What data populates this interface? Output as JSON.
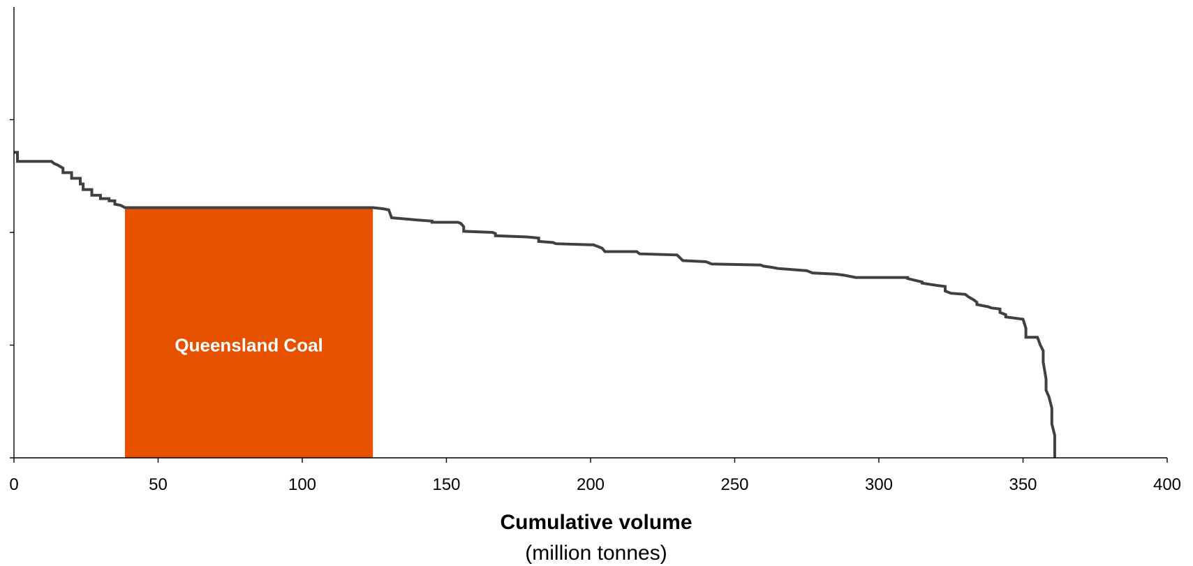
{
  "chart_data": {
    "type": "area",
    "title": "",
    "xlabel": "Cumulative volume",
    "xlabel_sub": "(million tonnes)",
    "ylabel": "",
    "xlim": [
      0,
      400
    ],
    "ylim": [
      0,
      4
    ],
    "xticks": [
      0,
      50,
      100,
      150,
      200,
      250,
      300,
      350,
      400
    ],
    "yticks": [
      0,
      1,
      2,
      3
    ],
    "grid": false,
    "legend": "none",
    "colors": {
      "curve": "#404040",
      "highlight": "#E65100",
      "axis": "#000000"
    },
    "highlight": {
      "label": "Queensland Coal",
      "x_start": 38.5,
      "x_end": 124.5,
      "y": 2.22
    },
    "series": [
      {
        "x": [
          0,
          1.2,
          1.2,
          13,
          14,
          15,
          17,
          17,
          20,
          20,
          23,
          23,
          24,
          24,
          27,
          27,
          30,
          30,
          33,
          33,
          35,
          35,
          37,
          38.5,
          124.5,
          128,
          130,
          131,
          140,
          145,
          145,
          154,
          155,
          156,
          156,
          166,
          167,
          167,
          178,
          182,
          182,
          187,
          188,
          200,
          201,
          204,
          205,
          216,
          217,
          230,
          232,
          240,
          242,
          259,
          260,
          263,
          265,
          270,
          275,
          277,
          285,
          288,
          290,
          292,
          300,
          310,
          310,
          315,
          315,
          320,
          323,
          323,
          325,
          325,
          330,
          331,
          333,
          334,
          334,
          338,
          339,
          342,
          342,
          344,
          344,
          350,
          351,
          351,
          355,
          356,
          357,
          357,
          358,
          358,
          359,
          360,
          360,
          361,
          361
        ],
        "y": [
          2.71,
          2.71,
          2.63,
          2.63,
          2.61,
          2.6,
          2.57,
          2.53,
          2.53,
          2.48,
          2.48,
          2.43,
          2.43,
          2.38,
          2.38,
          2.33,
          2.33,
          2.3,
          2.3,
          2.28,
          2.28,
          2.25,
          2.24,
          2.22,
          2.22,
          2.21,
          2.2,
          2.13,
          2.11,
          2.1,
          2.09,
          2.09,
          2.08,
          2.05,
          2.01,
          2.0,
          1.99,
          1.97,
          1.96,
          1.95,
          1.92,
          1.91,
          1.9,
          1.89,
          1.89,
          1.86,
          1.83,
          1.83,
          1.81,
          1.8,
          1.75,
          1.74,
          1.72,
          1.71,
          1.7,
          1.69,
          1.68,
          1.67,
          1.66,
          1.64,
          1.63,
          1.62,
          1.61,
          1.6,
          1.6,
          1.6,
          1.59,
          1.56,
          1.55,
          1.53,
          1.52,
          1.48,
          1.46,
          1.46,
          1.45,
          1.43,
          1.4,
          1.38,
          1.36,
          1.34,
          1.33,
          1.32,
          1.29,
          1.27,
          1.25,
          1.23,
          1.15,
          1.07,
          1.07,
          1.0,
          0.95,
          0.85,
          0.7,
          0.6,
          0.54,
          0.44,
          0.3,
          0.2,
          0.0
        ]
      }
    ]
  }
}
